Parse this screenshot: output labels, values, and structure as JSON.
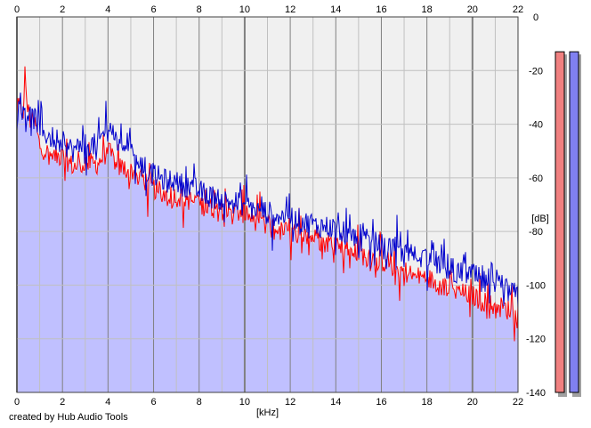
{
  "app": {
    "credit": "created by Hub Audio Tools"
  },
  "colors": {
    "background": "#ffffff",
    "plot_background": "#f0f0f0",
    "fill": "#c0c0ff",
    "left_channel": "#ff0000",
    "right_channel": "#0000cc",
    "major_grid": "#808080",
    "minor_grid": "#c0c0c0",
    "left_meter": "#f08080",
    "right_meter": "#8080f0",
    "meter_shadow": "#a0a0a0"
  },
  "chart_data": {
    "type": "line",
    "title": "",
    "xlabel": "[kHz]",
    "ylabel": "[dB]",
    "xlim": [
      0,
      22
    ],
    "ylim": [
      -140,
      0
    ],
    "x_ticks": [
      "0",
      "2",
      "4",
      "6",
      "8",
      "10",
      "12",
      "14",
      "16",
      "18",
      "20",
      "22"
    ],
    "y_ticks": [
      "0",
      "-20",
      "-40",
      "-60",
      "-80",
      "-100",
      "-120",
      "-140"
    ],
    "grid": true,
    "legend": "none",
    "series": [
      {
        "channel": "left",
        "color": "#ff0000",
        "x": [
          0,
          0.1,
          0.3,
          0.35,
          0.5,
          0.8,
          1,
          1.5,
          2,
          2.5,
          3,
          3.5,
          4,
          4.5,
          5,
          5.5,
          6,
          6.5,
          7,
          7.5,
          8,
          8.5,
          9,
          9.5,
          10,
          10.5,
          11,
          11.5,
          12,
          12.5,
          13,
          13.5,
          14,
          14.5,
          15,
          15.5,
          16,
          16.5,
          17,
          17.5,
          18,
          18.5,
          19,
          19.5,
          20,
          20.5,
          21,
          21.5,
          22
        ],
        "values": [
          -35,
          -33,
          -36,
          -21,
          -38,
          -40,
          -48,
          -52,
          -52,
          -56,
          -54,
          -55,
          -50,
          -56,
          -57,
          -60,
          -64,
          -66,
          -67,
          -68,
          -70,
          -71,
          -72,
          -73,
          -73,
          -76,
          -79,
          -80,
          -80,
          -82,
          -82,
          -84,
          -84,
          -86,
          -88,
          -90,
          -91,
          -93,
          -95,
          -97,
          -97,
          -100,
          -101,
          -103,
          -104,
          -106,
          -108,
          -109,
          -110
        ]
      },
      {
        "channel": "right",
        "color": "#0000cc",
        "x": [
          0,
          0.1,
          0.3,
          0.5,
          0.8,
          1,
          1.5,
          2,
          2.5,
          3,
          3.5,
          4,
          4.5,
          5,
          5.5,
          6,
          6.5,
          7,
          7.5,
          8,
          8.5,
          9,
          9.5,
          10,
          10.5,
          11,
          11.5,
          12,
          12.5,
          13,
          13.5,
          14,
          14.5,
          15,
          15.5,
          16,
          16.5,
          17,
          17.5,
          18,
          18.5,
          19,
          19.5,
          20,
          20.5,
          21,
          21.5,
          22
        ],
        "values": [
          -38,
          -31,
          -34,
          -36,
          -38,
          -42,
          -45,
          -47,
          -50,
          -47,
          -48,
          -40,
          -48,
          -46,
          -56,
          -59,
          -61,
          -62,
          -63,
          -65,
          -67,
          -68,
          -69,
          -70,
          -72,
          -73,
          -74,
          -75,
          -76,
          -78,
          -78,
          -79,
          -81,
          -82,
          -84,
          -85,
          -86,
          -88,
          -89,
          -90,
          -92,
          -94,
          -95,
          -96,
          -99,
          -100,
          -102,
          -104
        ]
      }
    ],
    "meters": [
      {
        "channel": "left",
        "level_db": -13
      },
      {
        "channel": "right",
        "level_db": -13
      }
    ]
  }
}
